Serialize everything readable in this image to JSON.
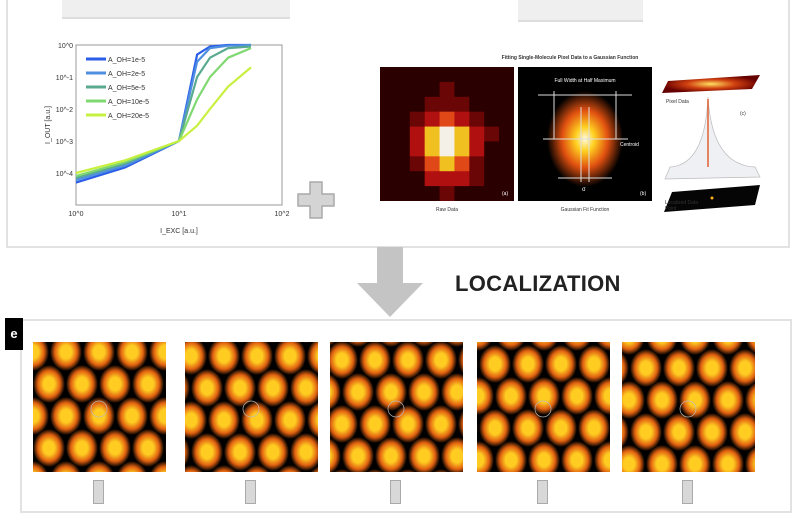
{
  "top_panel": {
    "chart_data": {
      "type": "line",
      "xlabel": "I_EXC [a.u.]",
      "ylabel": "I_OUT [a.u.]",
      "x_scale": "log",
      "y_scale": "log",
      "xlim": [
        1,
        100
      ],
      "ylim": [
        1e-05,
        1
      ],
      "x_ticks": [
        "10^0",
        "10^1",
        "10^2"
      ],
      "y_ticks": [
        "10^0",
        "10^-1",
        "10^-2",
        "10^-3",
        "10^-4"
      ],
      "legend_position": "top-left",
      "x": [
        1,
        3,
        10,
        15,
        20,
        30,
        50
      ],
      "series": [
        {
          "name": "A_OH=1e-5",
          "color": "#2a5de8",
          "values": [
            5e-05,
            0.00015,
            0.001,
            0.5,
            0.9,
            1,
            1
          ]
        },
        {
          "name": "A_OH=2e-5",
          "color": "#4f8fe0",
          "values": [
            6e-05,
            0.00017,
            0.001,
            0.3,
            0.8,
            0.95,
            1
          ]
        },
        {
          "name": "A_OH=5e-5",
          "color": "#5aaa90",
          "values": [
            7e-05,
            0.0002,
            0.001,
            0.1,
            0.4,
            0.8,
            0.9
          ]
        },
        {
          "name": "A_OH=10e-5",
          "color": "#7fd870",
          "values": [
            8e-05,
            0.00022,
            0.001,
            0.02,
            0.1,
            0.4,
            0.8
          ]
        },
        {
          "name": "A_OH=20e-5",
          "color": "#c8f040",
          "values": [
            0.0001,
            0.00025,
            0.001,
            0.003,
            0.01,
            0.05,
            0.2
          ]
        }
      ]
    },
    "gaussian_figure": {
      "title": "Fitting Single-Molecule Pixel Data to a Gaussian Function",
      "panel_a_label": "Raw Data",
      "panel_a_tag": "(a)",
      "panel_b_label": "Gaussian Fit Function",
      "panel_b_tag": "(b)",
      "fwhm_label": "Full Width at Half Maximum",
      "centroid_label": "Centroid",
      "sigma_label": "σ",
      "pixel_data_label": "Pixel Data",
      "panel_c_tag": "(c)",
      "localized_label": "Localized Data Point"
    }
  },
  "arrow_label": "LOCALIZATION",
  "bottom_panel": {
    "label": "e",
    "maps": 5,
    "colors": {
      "core": "#ffcc22",
      "mid": "#e06010",
      "edge": "#8a0808",
      "bg": "#000000"
    }
  },
  "colors": {
    "arrow": "#c4c4c4",
    "plus": "#cfcfcf",
    "panel_border": "#e2e2e2"
  }
}
